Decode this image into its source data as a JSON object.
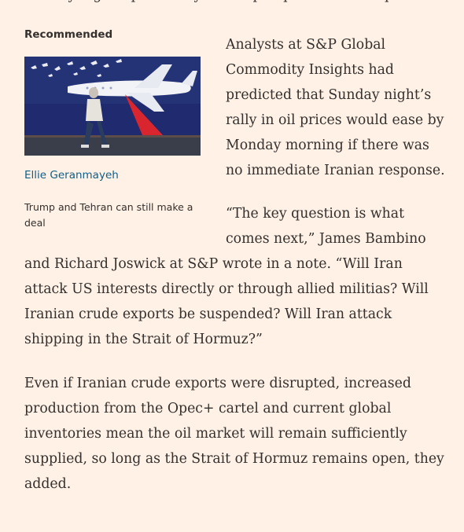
{
  "article": {
    "top_fragment": "Sunday night's price rally raised prospects of a sharp rise",
    "paragraphs": [
      "Analysts at S&P Global Commodity Insights had predicted that Sunday night’s rally in oil prices would ease by Monday morning if there was no immediate Iranian response.",
      "“The key question is what comes next,” James Bambino and Richard Joswick at S&P wrote in a note. “Will Iran attack US interests directly or through allied militias? Will Iranian crude exports be suspended? Will Iran attack shipping in the Strait of Hormuz?”",
      "Even if Iranian crude exports were disrupted, increased production from the Opec+ cartel and current global inventories mean the oil market will remain sufficiently supplied, so long as the Strait of Hormuz remains open, they added."
    ]
  },
  "recommended": {
    "heading": "Recommended",
    "author": "Ellie Geranmayeh",
    "title": "Trump and Tehran can still make a deal",
    "image_alt": "Woman walking past a mural of a plane and doves"
  }
}
